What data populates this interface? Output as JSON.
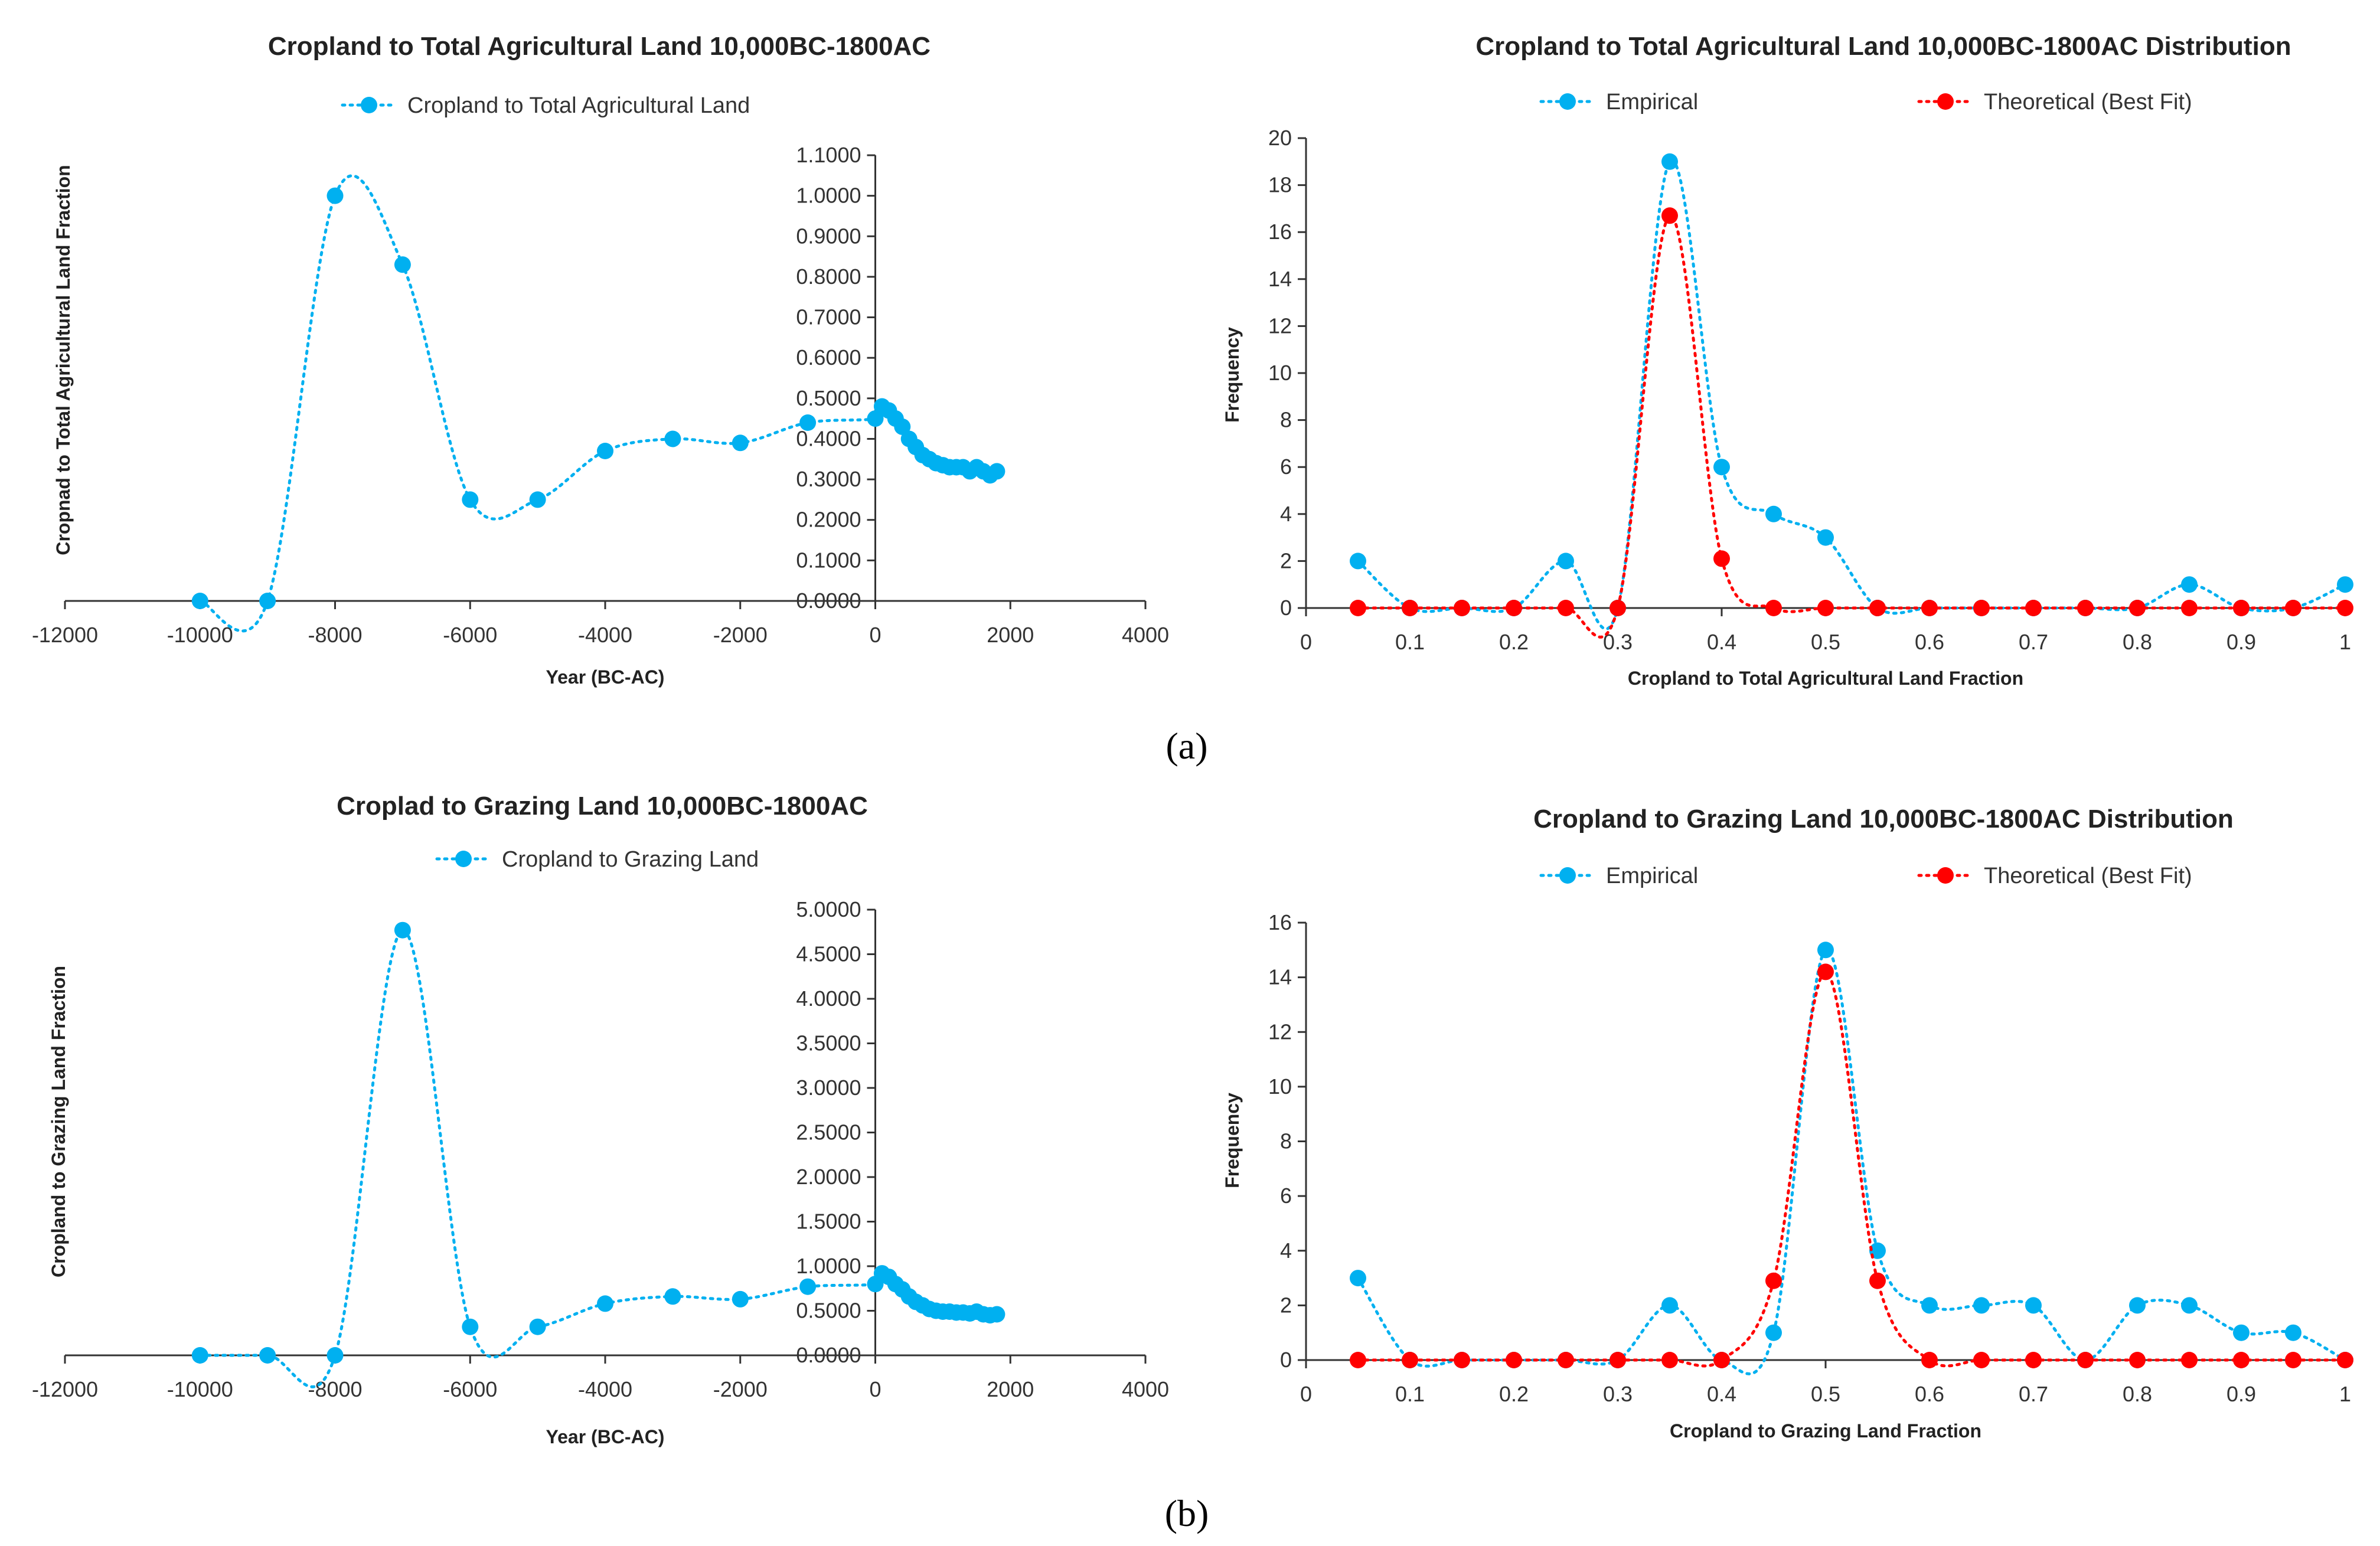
{
  "panel_labels": [
    "(a)",
    "(b)"
  ],
  "colors": {
    "empirical": "#00b0f0",
    "theoretical": "#ff0000",
    "axis": "#333333"
  },
  "chart_data": [
    {
      "id": "a-left",
      "type": "line",
      "title": "Cropland to Total Agricultural Land 10,000BC-1800AC",
      "xlabel": "Year (BC-AC)",
      "ylabel": "Cropnad to Total Agricultural Land Fraction",
      "xlim": [
        -12000,
        4000
      ],
      "ylim": [
        0,
        1.1
      ],
      "x_ticks": [
        -12000,
        -10000,
        -8000,
        -6000,
        -4000,
        -2000,
        0,
        2000,
        4000
      ],
      "x_tick_labels": [
        "-12000",
        "-10000",
        "-8000",
        "-6000",
        "-4000",
        "-2000",
        "0",
        "2000",
        "4000"
      ],
      "y_ticks": [
        0,
        0.1,
        0.2,
        0.3,
        0.4,
        0.5,
        0.6,
        0.7,
        0.8,
        0.9,
        1.0,
        1.1
      ],
      "y_tick_labels": [
        "0.0000",
        "0.1000",
        "0.2000",
        "0.3000",
        "0.4000",
        "0.5000",
        "0.6000",
        "0.7000",
        "0.8000",
        "0.9000",
        "1.0000",
        "1.1000"
      ],
      "legend_position": "top-center",
      "grid": false,
      "smooth": true,
      "series": [
        {
          "name": "Cropland to Total Agricultural Land",
          "color": "#00b0f0",
          "x": [
            -10000,
            -9000,
            -8000,
            -7000,
            -6000,
            -5000,
            -4000,
            -3000,
            -2000,
            -1000,
            0,
            100,
            200,
            300,
            400,
            500,
            600,
            700,
            800,
            900,
            1000,
            1100,
            1200,
            1300,
            1400,
            1500,
            1600,
            1700,
            1800
          ],
          "y": [
            0.0,
            0.0,
            1.0,
            0.83,
            0.25,
            0.25,
            0.37,
            0.4,
            0.39,
            0.44,
            0.45,
            0.48,
            0.47,
            0.45,
            0.43,
            0.4,
            0.38,
            0.36,
            0.35,
            0.34,
            0.335,
            0.33,
            0.33,
            0.33,
            0.32,
            0.33,
            0.32,
            0.31,
            0.32
          ]
        }
      ]
    },
    {
      "id": "a-right",
      "type": "line",
      "title": "Cropland to Total Agricultural Land 10,000BC-1800AC Distribution",
      "xlabel": "Cropland to Total Agricultural Land Fraction",
      "ylabel": "Frequency",
      "xlim": [
        0,
        1
      ],
      "ylim": [
        0,
        20
      ],
      "x_ticks": [
        0,
        0.1,
        0.2,
        0.3,
        0.4,
        0.5,
        0.6,
        0.7,
        0.8,
        0.9,
        1
      ],
      "x_tick_labels": [
        "0",
        "0.1",
        "0.2",
        "0.3",
        "0.4",
        "0.5",
        "0.6",
        "0.7",
        "0.8",
        "0.9",
        "1"
      ],
      "y_ticks": [
        0,
        2,
        4,
        6,
        8,
        10,
        12,
        14,
        16,
        18,
        20
      ],
      "y_tick_labels": [
        "0",
        "2",
        "4",
        "6",
        "8",
        "10",
        "12",
        "14",
        "16",
        "18",
        "20"
      ],
      "legend_position": "top-center",
      "grid": false,
      "smooth": true,
      "series": [
        {
          "name": "Empirical",
          "color": "#00b0f0",
          "x": [
            0.05,
            0.1,
            0.15,
            0.2,
            0.25,
            0.3,
            0.35,
            0.4,
            0.45,
            0.5,
            0.55,
            0.6,
            0.65,
            0.7,
            0.75,
            0.8,
            0.85,
            0.9,
            0.95,
            1.0
          ],
          "y": [
            2,
            0,
            0,
            0,
            2,
            0,
            19,
            6,
            4,
            3,
            0,
            0,
            0,
            0,
            0,
            0,
            1,
            0,
            0,
            1
          ]
        },
        {
          "name": "Theoretical (Best Fit)",
          "color": "#ff0000",
          "x": [
            0.05,
            0.1,
            0.15,
            0.2,
            0.25,
            0.3,
            0.35,
            0.4,
            0.45,
            0.5,
            0.55,
            0.6,
            0.65,
            0.7,
            0.75,
            0.8,
            0.85,
            0.9,
            0.95,
            1.0
          ],
          "y": [
            0,
            0,
            0,
            0,
            0,
            0,
            16.7,
            2.1,
            0,
            0,
            0,
            0,
            0,
            0,
            0,
            0,
            0,
            0,
            0,
            0
          ]
        }
      ]
    },
    {
      "id": "b-left",
      "type": "line",
      "title": "Croplad to Grazing Land 10,000BC-1800AC",
      "xlabel": "Year (BC-AC)",
      "ylabel": "Cropland to Grazing Land Fraction",
      "xlim": [
        -12000,
        4000
      ],
      "ylim": [
        0,
        5
      ],
      "x_ticks": [
        -12000,
        -10000,
        -8000,
        -6000,
        -4000,
        -2000,
        0,
        2000,
        4000
      ],
      "x_tick_labels": [
        "-12000",
        "-10000",
        "-8000",
        "-6000",
        "-4000",
        "-2000",
        "0",
        "2000",
        "4000"
      ],
      "y_ticks": [
        0,
        0.5,
        1.0,
        1.5,
        2.0,
        2.5,
        3.0,
        3.5,
        4.0,
        4.5,
        5.0
      ],
      "y_tick_labels": [
        "0.0000",
        "0.5000",
        "1.0000",
        "1.5000",
        "2.0000",
        "2.5000",
        "3.0000",
        "3.5000",
        "4.0000",
        "4.5000",
        "5.0000"
      ],
      "legend_position": "top-center",
      "grid": false,
      "smooth": true,
      "series": [
        {
          "name": "Cropland to Grazing Land",
          "color": "#00b0f0",
          "x": [
            -10000,
            -9000,
            -8000,
            -7000,
            -6000,
            -5000,
            -4000,
            -3000,
            -2000,
            -1000,
            0,
            100,
            200,
            300,
            400,
            500,
            600,
            700,
            800,
            900,
            1000,
            1100,
            1200,
            1300,
            1400,
            1500,
            1600,
            1700,
            1800
          ],
          "y": [
            0.0,
            0.0,
            0.0,
            4.77,
            0.32,
            0.32,
            0.58,
            0.66,
            0.63,
            0.77,
            0.8,
            0.92,
            0.88,
            0.8,
            0.74,
            0.66,
            0.6,
            0.56,
            0.52,
            0.5,
            0.49,
            0.49,
            0.48,
            0.48,
            0.47,
            0.49,
            0.46,
            0.45,
            0.46
          ]
        }
      ]
    },
    {
      "id": "b-right",
      "type": "line",
      "title": "Cropland to Grazing Land 10,000BC-1800AC Distribution",
      "xlabel": "Cropland to Grazing Land  Fraction",
      "ylabel": "Frequency",
      "xlim": [
        0,
        1
      ],
      "ylim": [
        0,
        16
      ],
      "x_ticks": [
        0,
        0.1,
        0.2,
        0.3,
        0.4,
        0.5,
        0.6,
        0.7,
        0.8,
        0.9,
        1
      ],
      "x_tick_labels": [
        "0",
        "0.1",
        "0.2",
        "0.3",
        "0.4",
        "0.5",
        "0.6",
        "0.7",
        "0.8",
        "0.9",
        "1"
      ],
      "y_ticks": [
        0,
        2,
        4,
        6,
        8,
        10,
        12,
        14,
        16
      ],
      "y_tick_labels": [
        "0",
        "2",
        "4",
        "6",
        "8",
        "10",
        "12",
        "14",
        "16"
      ],
      "legend_position": "top-center",
      "grid": false,
      "smooth": true,
      "series": [
        {
          "name": "Empirical",
          "color": "#00b0f0",
          "x": [
            0.05,
            0.1,
            0.15,
            0.2,
            0.25,
            0.3,
            0.35,
            0.4,
            0.45,
            0.5,
            0.55,
            0.6,
            0.65,
            0.7,
            0.75,
            0.8,
            0.85,
            0.9,
            0.95,
            1.0
          ],
          "y": [
            3,
            0,
            0,
            0,
            0,
            0,
            2,
            0,
            1,
            15,
            4,
            2,
            2,
            2,
            0,
            2,
            2,
            1,
            1,
            0
          ]
        },
        {
          "name": "Theoretical (Best Fit)",
          "color": "#ff0000",
          "x": [
            0.05,
            0.1,
            0.15,
            0.2,
            0.25,
            0.3,
            0.35,
            0.4,
            0.45,
            0.5,
            0.55,
            0.6,
            0.65,
            0.7,
            0.75,
            0.8,
            0.85,
            0.9,
            0.95,
            1.0
          ],
          "y": [
            0,
            0,
            0,
            0,
            0,
            0,
            0,
            0,
            2.9,
            14.2,
            2.9,
            0,
            0,
            0,
            0,
            0,
            0,
            0,
            0,
            0
          ]
        }
      ]
    }
  ]
}
